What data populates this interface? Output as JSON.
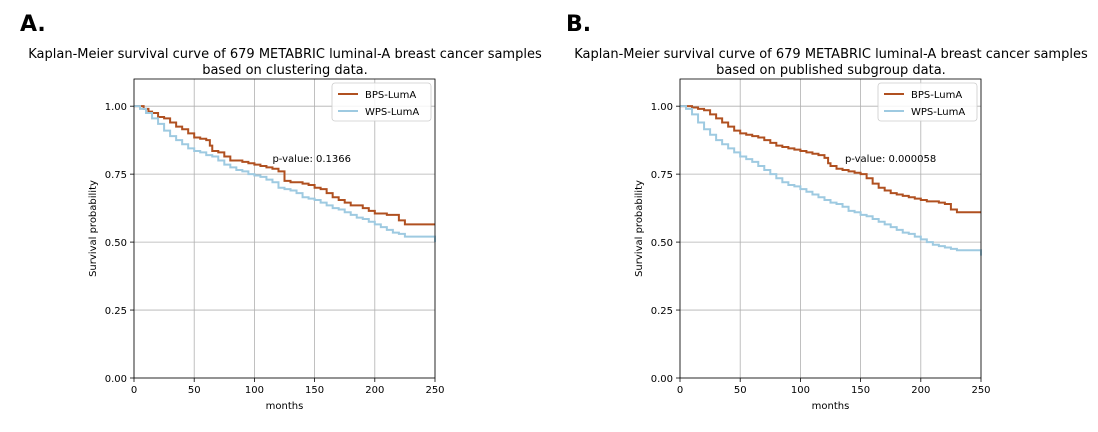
{
  "panels": [
    {
      "label": "A."
    },
    {
      "label": "B."
    }
  ],
  "chart_data": [
    {
      "type": "line",
      "title": "Kaplan-Meier survival curve of 679 METABRIC luminal-A breast cancer samples",
      "subtitle": "based on clustering data.",
      "xlabel": "months",
      "ylabel": "Survival probability",
      "xlim": [
        0,
        250
      ],
      "ylim": [
        0,
        1.1
      ],
      "xticks": [
        "0",
        "50",
        "100",
        "150",
        "200",
        "250"
      ],
      "yticks": [
        "0.00",
        "0.25",
        "0.50",
        "0.75",
        "1.00"
      ],
      "grid": true,
      "legend_position": "top-right",
      "annotation": {
        "text": "p-value: 0.1366",
        "x": 115,
        "y": 0.795
      },
      "series": [
        {
          "name": "BPS-LumA",
          "color": "#b05020",
          "x": [
            0,
            8,
            12,
            15,
            20,
            25,
            30,
            35,
            40,
            45,
            50,
            55,
            60,
            63,
            65,
            70,
            75,
            80,
            85,
            90,
            95,
            100,
            105,
            110,
            115,
            120,
            125,
            130,
            135,
            140,
            145,
            150,
            155,
            160,
            165,
            170,
            175,
            180,
            185,
            190,
            195,
            200,
            205,
            210,
            215,
            220,
            225,
            230,
            240,
            250
          ],
          "y": [
            1.0,
            0.99,
            0.98,
            0.975,
            0.96,
            0.955,
            0.94,
            0.925,
            0.915,
            0.9,
            0.885,
            0.88,
            0.875,
            0.855,
            0.835,
            0.83,
            0.815,
            0.8,
            0.8,
            0.795,
            0.79,
            0.785,
            0.78,
            0.775,
            0.77,
            0.76,
            0.725,
            0.72,
            0.72,
            0.715,
            0.71,
            0.7,
            0.695,
            0.68,
            0.665,
            0.655,
            0.645,
            0.635,
            0.635,
            0.625,
            0.615,
            0.605,
            0.605,
            0.6,
            0.6,
            0.58,
            0.565,
            0.565,
            0.565,
            0.565
          ]
        },
        {
          "name": "WPS-LumA",
          "color": "#9ecae1",
          "x": [
            0,
            5,
            10,
            15,
            20,
            25,
            30,
            35,
            40,
            45,
            50,
            55,
            60,
            65,
            70,
            75,
            80,
            85,
            90,
            95,
            100,
            105,
            110,
            115,
            120,
            125,
            130,
            135,
            140,
            145,
            150,
            155,
            160,
            165,
            170,
            175,
            180,
            185,
            190,
            195,
            200,
            205,
            210,
            215,
            220,
            225,
            230,
            240,
            249,
            250
          ],
          "y": [
            1.0,
            0.99,
            0.975,
            0.955,
            0.935,
            0.91,
            0.89,
            0.875,
            0.86,
            0.845,
            0.835,
            0.83,
            0.82,
            0.815,
            0.8,
            0.785,
            0.775,
            0.765,
            0.76,
            0.75,
            0.745,
            0.74,
            0.73,
            0.72,
            0.7,
            0.695,
            0.69,
            0.68,
            0.665,
            0.66,
            0.655,
            0.645,
            0.635,
            0.625,
            0.62,
            0.61,
            0.6,
            0.59,
            0.585,
            0.575,
            0.565,
            0.555,
            0.545,
            0.535,
            0.53,
            0.52,
            0.52,
            0.52,
            0.52,
            0.5
          ]
        }
      ]
    },
    {
      "type": "line",
      "title": "Kaplan-Meier survival curve of 679 METABRIC luminal-A breast cancer samples",
      "subtitle": "based on published subgroup data.",
      "xlabel": "months",
      "ylabel": "Survival probability",
      "xlim": [
        0,
        250
      ],
      "ylim": [
        0,
        1.1
      ],
      "xticks": [
        "0",
        "50",
        "100",
        "150",
        "200",
        "250"
      ],
      "yticks": [
        "0.00",
        "0.25",
        "0.50",
        "0.75",
        "1.00"
      ],
      "grid": true,
      "legend_position": "top-right",
      "annotation": {
        "text": "p-value:  0.000058",
        "x": 137,
        "y": 0.795
      },
      "series": [
        {
          "name": "BPS-LumA",
          "color": "#b05020",
          "x": [
            0,
            10,
            15,
            20,
            25,
            30,
            35,
            40,
            45,
            50,
            55,
            60,
            65,
            70,
            75,
            80,
            85,
            90,
            95,
            100,
            105,
            110,
            115,
            120,
            123,
            125,
            130,
            135,
            140,
            145,
            150,
            155,
            160,
            165,
            170,
            175,
            180,
            185,
            190,
            195,
            200,
            205,
            210,
            215,
            220,
            225,
            230,
            240,
            250
          ],
          "y": [
            1.0,
            0.995,
            0.99,
            0.985,
            0.97,
            0.955,
            0.94,
            0.925,
            0.91,
            0.9,
            0.895,
            0.89,
            0.885,
            0.875,
            0.865,
            0.855,
            0.85,
            0.845,
            0.84,
            0.835,
            0.83,
            0.825,
            0.82,
            0.81,
            0.79,
            0.78,
            0.77,
            0.765,
            0.76,
            0.755,
            0.75,
            0.735,
            0.715,
            0.7,
            0.69,
            0.68,
            0.675,
            0.67,
            0.665,
            0.66,
            0.655,
            0.65,
            0.65,
            0.645,
            0.64,
            0.62,
            0.61,
            0.61,
            0.61
          ]
        },
        {
          "name": "WPS-LumA",
          "color": "#9ecae1",
          "x": [
            0,
            5,
            10,
            15,
            20,
            25,
            30,
            35,
            40,
            45,
            50,
            55,
            60,
            65,
            70,
            75,
            80,
            85,
            90,
            95,
            100,
            105,
            110,
            115,
            120,
            125,
            130,
            135,
            140,
            145,
            150,
            155,
            160,
            165,
            170,
            175,
            180,
            185,
            190,
            195,
            200,
            205,
            210,
            215,
            220,
            225,
            230,
            240,
            249,
            250
          ],
          "y": [
            1.0,
            0.99,
            0.97,
            0.94,
            0.915,
            0.895,
            0.875,
            0.86,
            0.845,
            0.83,
            0.815,
            0.805,
            0.795,
            0.78,
            0.765,
            0.75,
            0.735,
            0.72,
            0.71,
            0.705,
            0.695,
            0.685,
            0.675,
            0.665,
            0.655,
            0.645,
            0.64,
            0.63,
            0.615,
            0.61,
            0.6,
            0.595,
            0.585,
            0.575,
            0.565,
            0.555,
            0.545,
            0.535,
            0.53,
            0.52,
            0.51,
            0.5,
            0.49,
            0.485,
            0.48,
            0.475,
            0.47,
            0.47,
            0.47,
            0.45
          ]
        }
      ]
    }
  ]
}
